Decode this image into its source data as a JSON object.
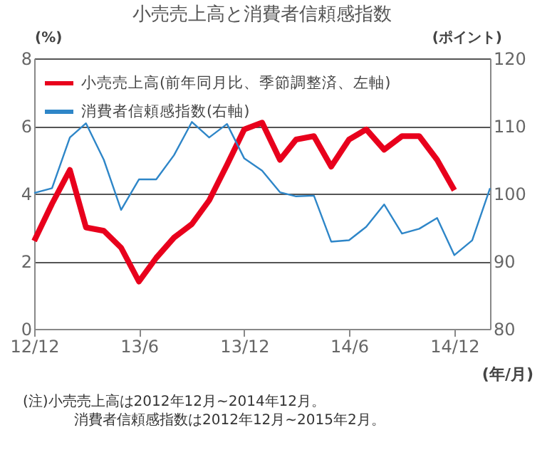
{
  "chart_data": {
    "type": "line",
    "title": "小売売上高と消費者信頼感指数",
    "ylabel": "(%)",
    "y2label": "(ポイント)",
    "xlabel": "(年/月)",
    "x": [
      "2012-12",
      "2013-01",
      "2013-02",
      "2013-03",
      "2013-04",
      "2013-05",
      "2013-06",
      "2013-07",
      "2013-08",
      "2013-09",
      "2013-10",
      "2013-11",
      "2013-12",
      "2014-01",
      "2014-02",
      "2014-03",
      "2014-04",
      "2014-05",
      "2014-06",
      "2014-07",
      "2014-08",
      "2014-09",
      "2014-10",
      "2014-11",
      "2014-12",
      "2015-01",
      "2015-02"
    ],
    "series": [
      {
        "name": "小売売上高(前年同月比、季節調整済、左軸)",
        "color": "#e8001c",
        "axis": "y",
        "values": [
          2.6,
          3.7,
          4.7,
          3.0,
          2.9,
          2.4,
          1.4,
          2.1,
          2.7,
          3.1,
          3.8,
          4.85,
          5.9,
          6.1,
          5.0,
          5.6,
          5.7,
          4.8,
          5.6,
          5.9,
          5.3,
          5.7,
          5.7,
          5.0,
          4.1,
          null,
          null
        ]
      },
      {
        "name": "消費者信頼感指数(右軸)",
        "color": "#2e86c8",
        "axis": "y2",
        "values": [
          100.1,
          100.8,
          108.3,
          110.4,
          105.0,
          97.6,
          102.1,
          102.1,
          105.7,
          110.6,
          108.3,
          110.3,
          105.2,
          103.4,
          100.2,
          99.6,
          99.7,
          92.9,
          93.1,
          95.1,
          98.4,
          94.1,
          94.8,
          96.4,
          90.9,
          93.1,
          100.8
        ]
      }
    ],
    "xlim": [
      "2012-12",
      "2015-02"
    ],
    "xticks": [
      {
        "value": "2012-12",
        "label": "12/12"
      },
      {
        "value": "2013-06",
        "label": "13/6"
      },
      {
        "value": "2013-12",
        "label": "13/12"
      },
      {
        "value": "2014-06",
        "label": "14/6"
      },
      {
        "value": "2014-12",
        "label": "14/12"
      }
    ],
    "ylim": [
      0,
      8
    ],
    "yticks": [
      0,
      2,
      4,
      6,
      8
    ],
    "y2lim": [
      80,
      120
    ],
    "y2ticks": [
      80,
      90,
      100,
      110,
      120
    ],
    "grid": "y",
    "legend": "top left",
    "marker": "none",
    "line_style": "solid",
    "annotations": [
      "(注)小売売上高は2012年12月~2014年12月。",
      "消費者信頼感指数は2012年12月~2015年2月。"
    ]
  }
}
